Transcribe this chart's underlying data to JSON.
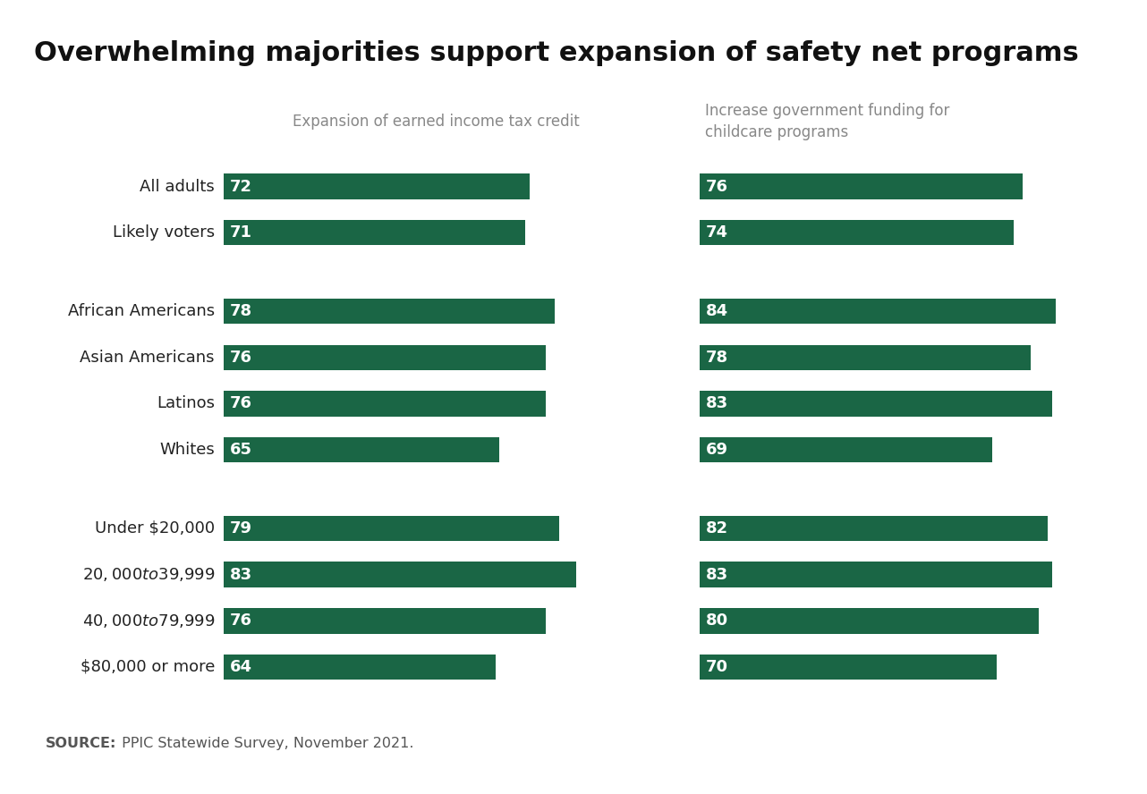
{
  "title": "Overwhelming majorities support expansion of safety net programs",
  "col1_header": "Expansion of earned income tax credit",
  "col2_header_line1": "Increase government funding for",
  "col2_header_line2": "childcare programs",
  "source_bold": "SOURCE:",
  "source_rest": " PPIC Statewide Survey, November 2021.",
  "bar_color": "#1a6645",
  "text_color_white": "#ffffff",
  "text_color_label": "#222222",
  "text_color_header": "#888888",
  "background_color": "#ffffff",
  "footer_bg": "#ebebeb",
  "groups": [
    {
      "labels": [
        "All adults",
        "Likely voters"
      ],
      "col1_values": [
        72,
        71
      ],
      "col2_values": [
        76,
        74
      ]
    },
    {
      "labels": [
        "African Americans",
        "Asian Americans",
        "Latinos",
        "Whites"
      ],
      "col1_values": [
        78,
        76,
        76,
        65
      ],
      "col2_values": [
        84,
        78,
        83,
        69
      ]
    },
    {
      "labels": [
        "Under $20,000",
        "$20,000 to $39,999",
        "$40,000 to $79,999",
        "$80,000 or more"
      ],
      "col1_values": [
        79,
        83,
        76,
        64
      ],
      "col2_values": [
        82,
        83,
        80,
        70
      ]
    }
  ],
  "max_value": 100,
  "title_fontsize": 22,
  "label_fontsize": 13,
  "value_fontsize": 13,
  "header_fontsize": 12
}
